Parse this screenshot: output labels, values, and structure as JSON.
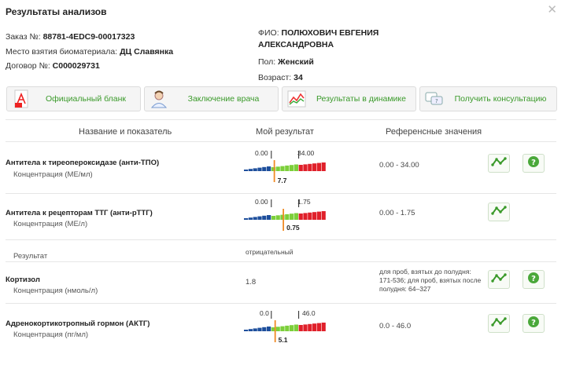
{
  "header": {
    "title": "Результаты анализов"
  },
  "order": {
    "order_label": "Заказ №:",
    "order_value": "88781-4EDC9-00017323",
    "place_label": "Место взятия биоматериала:",
    "place_value": "ДЦ Славянка",
    "contract_label": "Договор №:",
    "contract_value": "С000029731"
  },
  "patient": {
    "fio_label": "ФИО:",
    "fio_value": "ПОЛЮХОВИЧ ЕВГЕНИЯ АЛЕКСАНДРОВНА",
    "sex_label": "Пол:",
    "sex_value": "Женский",
    "age_label": "Возраст:",
    "age_value": "34"
  },
  "actions": [
    {
      "label": "Официальный бланк",
      "icon": "pdf-icon"
    },
    {
      "label": "Заключение врача",
      "icon": "doctor-icon"
    },
    {
      "label": "Результаты в динамике",
      "icon": "chart-icon"
    },
    {
      "label": "Получить консультацию",
      "icon": "chat-icon"
    }
  ],
  "table_headers": {
    "name": "Название и показатель",
    "result": "Мой результат",
    "reference": "Референсные значения"
  },
  "rows": [
    {
      "name": "Антитела к тиреопероксидазе (анти-ТПО)",
      "unit": "Концентрация (МЕ/мл)",
      "low": "0.00",
      "high": "34.00",
      "value": "7.7",
      "level": 0.37,
      "reference": "0.00 - 34.00"
    },
    {
      "name": "Антитела к рецепторам ТТГ (анти-рТТГ)",
      "unit": "Концентрация (МЕ/л)",
      "low": "0.00",
      "high": "1.75",
      "value": "0.75",
      "level": 0.48,
      "reference": "0.00 - 1.75"
    },
    {
      "name": "Результат",
      "result_text": "отрицательный"
    },
    {
      "name": "Кортизол",
      "unit": "Концентрация (нмоль/л)",
      "value": "1.8",
      "reference": "для проб, взятых до полудня: 171-536; для проб, взятых после полудня: 64–327"
    },
    {
      "name": "Адренокортикотропный гормон (АКТГ)",
      "unit": "Концентрация (пг/мл)",
      "low": "0.0",
      "high": "46.0",
      "value": "5.1",
      "level": 0.38,
      "reference": "0.0 - 46.0"
    }
  ],
  "colors": {
    "accent_green": "#3a9a2a",
    "low": "#1e4f9c",
    "normal": "#7ccf3a",
    "high": "#e0202a",
    "marker": "#f08a24"
  }
}
